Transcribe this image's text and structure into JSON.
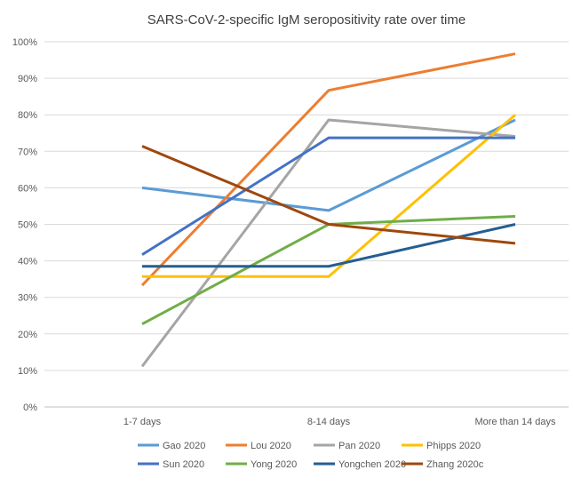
{
  "chart_data": {
    "type": "line",
    "title": "SARS-CoV-2-specific IgM seropositivity rate over time",
    "xlabel": "",
    "ylabel": "",
    "categories": [
      "1-7 days",
      "8-14 days",
      "More than 14 days"
    ],
    "ylim": [
      0,
      100
    ],
    "yticks": [
      "0%",
      "10%",
      "20%",
      "30%",
      "40%",
      "50%",
      "60%",
      "70%",
      "80%",
      "90%",
      "100%"
    ],
    "grid": true,
    "legend_position": "bottom",
    "series": [
      {
        "name": "Gao 2020",
        "color": "#5B9BD5",
        "values": [
          60,
          53.8,
          78.6
        ]
      },
      {
        "name": "Lou 2020",
        "color": "#ED7D31",
        "values": [
          33.3,
          86.7,
          96.7
        ]
      },
      {
        "name": "Pan 2020",
        "color": "#A5A5A5",
        "values": [
          11.1,
          78.6,
          74.1
        ]
      },
      {
        "name": "Phipps 2020",
        "color": "#FFC000",
        "values": [
          35.7,
          35.7,
          80
        ]
      },
      {
        "name": "Sun 2020",
        "color": "#4472C4",
        "values": [
          41.7,
          73.7,
          73.7
        ]
      },
      {
        "name": "Yong 2020",
        "color": "#70AD47",
        "values": [
          22.7,
          50,
          52.2
        ]
      },
      {
        "name": "Yongchen 2020",
        "color": "#255E91",
        "values": [
          38.5,
          38.5,
          50
        ]
      },
      {
        "name": "Zhang 2020c",
        "color": "#9E480E",
        "values": [
          71.4,
          50,
          44.8
        ]
      }
    ]
  }
}
